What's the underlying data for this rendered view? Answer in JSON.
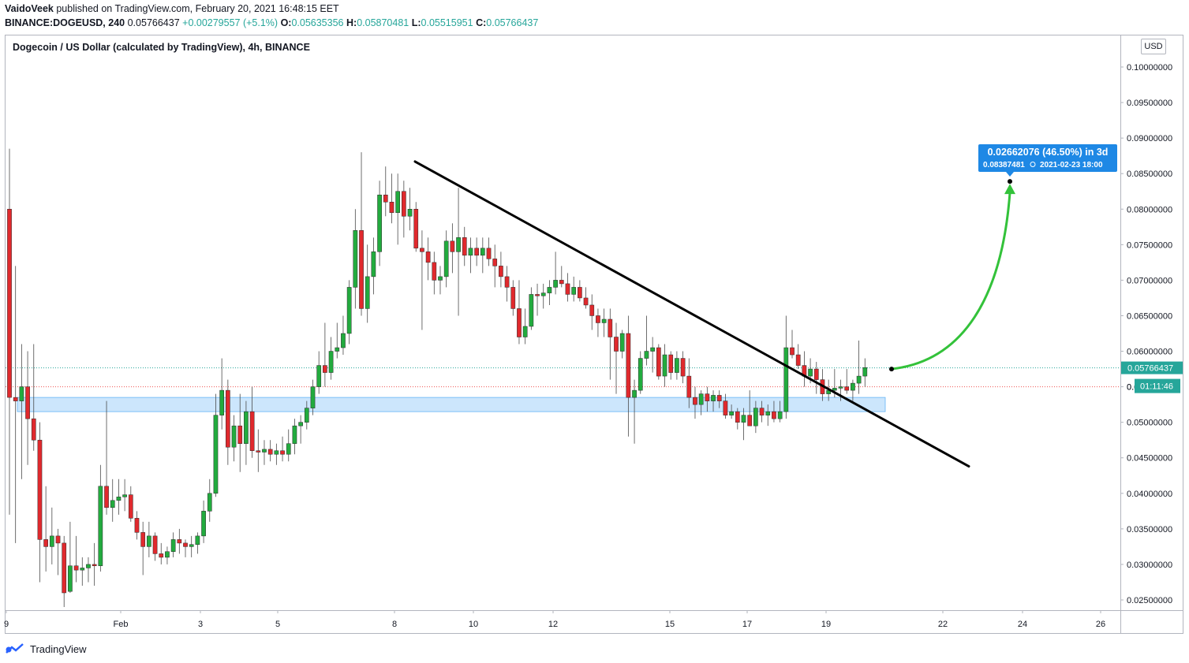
{
  "header": {
    "publisher": "VaidoVeek",
    "published_text": "published on TradingView.com, February 20, 2021 16:48:15 EET",
    "symbol": "BINANCE:DOGEUSD, 240",
    "last": "0.05766437",
    "change": "+0.00279557 (+5.1%)",
    "o_label": "O:",
    "o_value": "0.05635356",
    "h_label": "H:",
    "h_value": "0.05870481",
    "l_label": "L:",
    "l_value": "0.05515951",
    "c_label": "C:",
    "c_value": "0.05766437"
  },
  "pane_title": "Dogecoin / US Dollar (calculated by TradingView), 4h, BINANCE",
  "currency": "USD",
  "price_badges": {
    "last_price": "0.05766437",
    "countdown": "01:11:46",
    "hidden_prefix": "0."
  },
  "projection": {
    "line1": "0.02662076 (46.50%) in 3d",
    "line2_price": "0.08387481",
    "line2_date": "2021-02-23   18:00"
  },
  "footer": {
    "brand": "TradingView"
  },
  "colors": {
    "up": "#26a69a",
    "down": "#ef5350",
    "candle_up": "#22ab3e",
    "candle_down": "#e0292d",
    "zone": "#bbdefb",
    "arrow": "#33c23a",
    "badge": "#2962ff",
    "label_blue": "#1e88e5"
  },
  "chart_data": {
    "type": "candlestick",
    "interval": "4h",
    "ylim": [
      0.0235,
      0.1035
    ],
    "y_ticks": [
      "0.02500000",
      "0.03000000",
      "0.03500000",
      "0.04000000",
      "0.04500000",
      "0.05000000",
      "0.05500000",
      "0.06000000",
      "0.06500000",
      "0.07000000",
      "0.07500000",
      "0.08000000",
      "0.08500000",
      "0.09000000",
      "0.09500000",
      "0.10000000"
    ],
    "x_ticks": [
      "9",
      "Feb",
      "3",
      "5",
      "8",
      "10",
      "12",
      "15",
      "17",
      "19",
      "22",
      "24",
      "26"
    ],
    "last_price": 0.05766437,
    "reference_line": 0.055,
    "support_zone": [
      0.0515,
      0.0535
    ],
    "trendline": {
      "from": [
        "2021-01-08 00:00",
        0.0867
      ],
      "to": [
        "2021-01-22 04:00",
        0.0438
      ]
    },
    "projection_arrow": {
      "from": [
        "2021-01-20 16:00",
        0.0575
      ],
      "to": [
        "2021-01-23 18:00",
        0.0839
      ]
    },
    "candles": [
      {
        "o": 0.08,
        "h": 0.0885,
        "l": 0.037,
        "c": 0.0535
      },
      {
        "o": 0.0535,
        "h": 0.072,
        "l": 0.033,
        "c": 0.053
      },
      {
        "o": 0.053,
        "h": 0.061,
        "l": 0.042,
        "c": 0.055
      },
      {
        "o": 0.055,
        "h": 0.06,
        "l": 0.044,
        "c": 0.0505
      },
      {
        "o": 0.0505,
        "h": 0.061,
        "l": 0.046,
        "c": 0.0475
      },
      {
        "o": 0.0475,
        "h": 0.05,
        "l": 0.0275,
        "c": 0.0335
      },
      {
        "o": 0.0335,
        "h": 0.041,
        "l": 0.029,
        "c": 0.0325
      },
      {
        "o": 0.0325,
        "h": 0.038,
        "l": 0.03,
        "c": 0.034
      },
      {
        "o": 0.034,
        "h": 0.035,
        "l": 0.0285,
        "c": 0.033
      },
      {
        "o": 0.033,
        "h": 0.034,
        "l": 0.024,
        "c": 0.026
      },
      {
        "o": 0.0262,
        "h": 0.036,
        "l": 0.026,
        "c": 0.0298
      },
      {
        "o": 0.0298,
        "h": 0.034,
        "l": 0.0275,
        "c": 0.0292
      },
      {
        "o": 0.0292,
        "h": 0.031,
        "l": 0.027,
        "c": 0.0295
      },
      {
        "o": 0.0295,
        "h": 0.031,
        "l": 0.0275,
        "c": 0.03
      },
      {
        "o": 0.03,
        "h": 0.033,
        "l": 0.027,
        "c": 0.0298
      },
      {
        "o": 0.0298,
        "h": 0.044,
        "l": 0.029,
        "c": 0.041
      },
      {
        "o": 0.041,
        "h": 0.053,
        "l": 0.037,
        "c": 0.038
      },
      {
        "o": 0.038,
        "h": 0.042,
        "l": 0.036,
        "c": 0.039
      },
      {
        "o": 0.039,
        "h": 0.042,
        "l": 0.037,
        "c": 0.0395
      },
      {
        "o": 0.0395,
        "h": 0.042,
        "l": 0.0375,
        "c": 0.0398
      },
      {
        "o": 0.0398,
        "h": 0.041,
        "l": 0.036,
        "c": 0.0365
      },
      {
        "o": 0.0365,
        "h": 0.0375,
        "l": 0.0335,
        "c": 0.0345
      },
      {
        "o": 0.0345,
        "h": 0.036,
        "l": 0.0285,
        "c": 0.0325
      },
      {
        "o": 0.0325,
        "h": 0.036,
        "l": 0.031,
        "c": 0.034
      },
      {
        "o": 0.034,
        "h": 0.0345,
        "l": 0.0305,
        "c": 0.0315
      },
      {
        "o": 0.0315,
        "h": 0.033,
        "l": 0.03,
        "c": 0.031
      },
      {
        "o": 0.031,
        "h": 0.0325,
        "l": 0.03,
        "c": 0.0318
      },
      {
        "o": 0.0318,
        "h": 0.0345,
        "l": 0.031,
        "c": 0.0335
      },
      {
        "o": 0.0335,
        "h": 0.035,
        "l": 0.0315,
        "c": 0.033
      },
      {
        "o": 0.033,
        "h": 0.0335,
        "l": 0.031,
        "c": 0.0325
      },
      {
        "o": 0.0325,
        "h": 0.034,
        "l": 0.031,
        "c": 0.0328
      },
      {
        "o": 0.0328,
        "h": 0.0345,
        "l": 0.0315,
        "c": 0.034
      },
      {
        "o": 0.034,
        "h": 0.039,
        "l": 0.033,
        "c": 0.0375
      },
      {
        "o": 0.0375,
        "h": 0.042,
        "l": 0.036,
        "c": 0.04
      },
      {
        "o": 0.04,
        "h": 0.054,
        "l": 0.0395,
        "c": 0.051
      },
      {
        "o": 0.051,
        "h": 0.059,
        "l": 0.049,
        "c": 0.0545
      },
      {
        "o": 0.0545,
        "h": 0.056,
        "l": 0.044,
        "c": 0.0465
      },
      {
        "o": 0.0465,
        "h": 0.051,
        "l": 0.0445,
        "c": 0.0495
      },
      {
        "o": 0.0495,
        "h": 0.054,
        "l": 0.043,
        "c": 0.047
      },
      {
        "o": 0.047,
        "h": 0.053,
        "l": 0.044,
        "c": 0.0515
      },
      {
        "o": 0.0515,
        "h": 0.055,
        "l": 0.045,
        "c": 0.046
      },
      {
        "o": 0.046,
        "h": 0.049,
        "l": 0.043,
        "c": 0.0458
      },
      {
        "o": 0.0458,
        "h": 0.0475,
        "l": 0.044,
        "c": 0.0462
      },
      {
        "o": 0.0462,
        "h": 0.0475,
        "l": 0.0445,
        "c": 0.0455
      },
      {
        "o": 0.0455,
        "h": 0.047,
        "l": 0.044,
        "c": 0.046
      },
      {
        "o": 0.046,
        "h": 0.048,
        "l": 0.0445,
        "c": 0.0455
      },
      {
        "o": 0.0455,
        "h": 0.049,
        "l": 0.0445,
        "c": 0.047
      },
      {
        "o": 0.047,
        "h": 0.0505,
        "l": 0.0455,
        "c": 0.0495
      },
      {
        "o": 0.0495,
        "h": 0.051,
        "l": 0.047,
        "c": 0.05
      },
      {
        "o": 0.05,
        "h": 0.053,
        "l": 0.049,
        "c": 0.052
      },
      {
        "o": 0.052,
        "h": 0.056,
        "l": 0.051,
        "c": 0.055
      },
      {
        "o": 0.055,
        "h": 0.06,
        "l": 0.054,
        "c": 0.058
      },
      {
        "o": 0.058,
        "h": 0.064,
        "l": 0.055,
        "c": 0.057
      },
      {
        "o": 0.057,
        "h": 0.062,
        "l": 0.056,
        "c": 0.06
      },
      {
        "o": 0.06,
        "h": 0.064,
        "l": 0.059,
        "c": 0.0605
      },
      {
        "o": 0.0605,
        "h": 0.065,
        "l": 0.0595,
        "c": 0.0625
      },
      {
        "o": 0.0625,
        "h": 0.07,
        "l": 0.061,
        "c": 0.069
      },
      {
        "o": 0.069,
        "h": 0.08,
        "l": 0.066,
        "c": 0.077
      },
      {
        "o": 0.077,
        "h": 0.088,
        "l": 0.065,
        "c": 0.066
      },
      {
        "o": 0.066,
        "h": 0.075,
        "l": 0.064,
        "c": 0.0705
      },
      {
        "o": 0.0705,
        "h": 0.076,
        "l": 0.068,
        "c": 0.074
      },
      {
        "o": 0.074,
        "h": 0.084,
        "l": 0.072,
        "c": 0.082
      },
      {
        "o": 0.082,
        "h": 0.086,
        "l": 0.079,
        "c": 0.081
      },
      {
        "o": 0.081,
        "h": 0.085,
        "l": 0.078,
        "c": 0.0795
      },
      {
        "o": 0.0795,
        "h": 0.085,
        "l": 0.075,
        "c": 0.0825
      },
      {
        "o": 0.0825,
        "h": 0.084,
        "l": 0.076,
        "c": 0.079
      },
      {
        "o": 0.079,
        "h": 0.083,
        "l": 0.077,
        "c": 0.08
      },
      {
        "o": 0.08,
        "h": 0.081,
        "l": 0.074,
        "c": 0.0745
      },
      {
        "o": 0.0745,
        "h": 0.077,
        "l": 0.063,
        "c": 0.074
      },
      {
        "o": 0.074,
        "h": 0.076,
        "l": 0.07,
        "c": 0.0725
      },
      {
        "o": 0.0725,
        "h": 0.074,
        "l": 0.068,
        "c": 0.07
      },
      {
        "o": 0.07,
        "h": 0.072,
        "l": 0.068,
        "c": 0.0705
      },
      {
        "o": 0.0705,
        "h": 0.077,
        "l": 0.069,
        "c": 0.0755
      },
      {
        "o": 0.0755,
        "h": 0.078,
        "l": 0.071,
        "c": 0.074
      },
      {
        "o": 0.074,
        "h": 0.083,
        "l": 0.065,
        "c": 0.076
      },
      {
        "o": 0.076,
        "h": 0.0775,
        "l": 0.072,
        "c": 0.0735
      },
      {
        "o": 0.0735,
        "h": 0.076,
        "l": 0.071,
        "c": 0.0745
      },
      {
        "o": 0.0745,
        "h": 0.076,
        "l": 0.072,
        "c": 0.0735
      },
      {
        "o": 0.0735,
        "h": 0.076,
        "l": 0.071,
        "c": 0.0745
      },
      {
        "o": 0.0745,
        "h": 0.076,
        "l": 0.072,
        "c": 0.073
      },
      {
        "o": 0.073,
        "h": 0.075,
        "l": 0.069,
        "c": 0.072
      },
      {
        "o": 0.072,
        "h": 0.074,
        "l": 0.069,
        "c": 0.0705
      },
      {
        "o": 0.0705,
        "h": 0.072,
        "l": 0.067,
        "c": 0.069
      },
      {
        "o": 0.069,
        "h": 0.07,
        "l": 0.065,
        "c": 0.066
      },
      {
        "o": 0.066,
        "h": 0.07,
        "l": 0.061,
        "c": 0.062
      },
      {
        "o": 0.062,
        "h": 0.066,
        "l": 0.061,
        "c": 0.0635
      },
      {
        "o": 0.0635,
        "h": 0.069,
        "l": 0.063,
        "c": 0.068
      },
      {
        "o": 0.068,
        "h": 0.0695,
        "l": 0.065,
        "c": 0.0678
      },
      {
        "o": 0.0678,
        "h": 0.0695,
        "l": 0.066,
        "c": 0.0682
      },
      {
        "o": 0.0682,
        "h": 0.07,
        "l": 0.0665,
        "c": 0.069
      },
      {
        "o": 0.069,
        "h": 0.074,
        "l": 0.068,
        "c": 0.07
      },
      {
        "o": 0.07,
        "h": 0.072,
        "l": 0.069,
        "c": 0.0695
      },
      {
        "o": 0.0695,
        "h": 0.071,
        "l": 0.067,
        "c": 0.068
      },
      {
        "o": 0.068,
        "h": 0.0705,
        "l": 0.067,
        "c": 0.069
      },
      {
        "o": 0.069,
        "h": 0.07,
        "l": 0.067,
        "c": 0.0675
      },
      {
        "o": 0.0675,
        "h": 0.069,
        "l": 0.066,
        "c": 0.0665
      },
      {
        "o": 0.0665,
        "h": 0.068,
        "l": 0.063,
        "c": 0.065
      },
      {
        "o": 0.065,
        "h": 0.066,
        "l": 0.062,
        "c": 0.064
      },
      {
        "o": 0.064,
        "h": 0.066,
        "l": 0.062,
        "c": 0.0645
      },
      {
        "o": 0.0645,
        "h": 0.066,
        "l": 0.056,
        "c": 0.062
      },
      {
        "o": 0.062,
        "h": 0.064,
        "l": 0.054,
        "c": 0.06
      },
      {
        "o": 0.06,
        "h": 0.063,
        "l": 0.059,
        "c": 0.0625
      },
      {
        "o": 0.0625,
        "h": 0.065,
        "l": 0.048,
        "c": 0.0535
      },
      {
        "o": 0.0535,
        "h": 0.056,
        "l": 0.047,
        "c": 0.0545
      },
      {
        "o": 0.0545,
        "h": 0.06,
        "l": 0.054,
        "c": 0.059
      },
      {
        "o": 0.059,
        "h": 0.065,
        "l": 0.058,
        "c": 0.06
      },
      {
        "o": 0.06,
        "h": 0.062,
        "l": 0.057,
        "c": 0.0605
      },
      {
        "o": 0.0605,
        "h": 0.061,
        "l": 0.056,
        "c": 0.0565
      },
      {
        "o": 0.0565,
        "h": 0.061,
        "l": 0.055,
        "c": 0.0595
      },
      {
        "o": 0.0595,
        "h": 0.06,
        "l": 0.056,
        "c": 0.057
      },
      {
        "o": 0.057,
        "h": 0.06,
        "l": 0.056,
        "c": 0.059
      },
      {
        "o": 0.059,
        "h": 0.06,
        "l": 0.0555,
        "c": 0.0565
      },
      {
        "o": 0.0565,
        "h": 0.059,
        "l": 0.052,
        "c": 0.0535
      },
      {
        "o": 0.0535,
        "h": 0.055,
        "l": 0.0505,
        "c": 0.0525
      },
      {
        "o": 0.0525,
        "h": 0.0545,
        "l": 0.051,
        "c": 0.054
      },
      {
        "o": 0.054,
        "h": 0.055,
        "l": 0.0515,
        "c": 0.053
      },
      {
        "o": 0.053,
        "h": 0.0545,
        "l": 0.0515,
        "c": 0.0538
      },
      {
        "o": 0.0538,
        "h": 0.0545,
        "l": 0.052,
        "c": 0.053
      },
      {
        "o": 0.053,
        "h": 0.054,
        "l": 0.0505,
        "c": 0.051
      },
      {
        "o": 0.051,
        "h": 0.0525,
        "l": 0.0505,
        "c": 0.0515
      },
      {
        "o": 0.0515,
        "h": 0.052,
        "l": 0.049,
        "c": 0.05
      },
      {
        "o": 0.05,
        "h": 0.052,
        "l": 0.0475,
        "c": 0.051
      },
      {
        "o": 0.051,
        "h": 0.0545,
        "l": 0.0495,
        "c": 0.0495
      },
      {
        "o": 0.0495,
        "h": 0.053,
        "l": 0.0485,
        "c": 0.052
      },
      {
        "o": 0.052,
        "h": 0.053,
        "l": 0.05,
        "c": 0.051
      },
      {
        "o": 0.051,
        "h": 0.0525,
        "l": 0.0495,
        "c": 0.0515
      },
      {
        "o": 0.0515,
        "h": 0.053,
        "l": 0.05,
        "c": 0.0505
      },
      {
        "o": 0.0505,
        "h": 0.053,
        "l": 0.05,
        "c": 0.0515
      },
      {
        "o": 0.0515,
        "h": 0.065,
        "l": 0.0505,
        "c": 0.0605
      },
      {
        "o": 0.0605,
        "h": 0.063,
        "l": 0.059,
        "c": 0.0595
      },
      {
        "o": 0.0595,
        "h": 0.061,
        "l": 0.0575,
        "c": 0.058
      },
      {
        "o": 0.058,
        "h": 0.06,
        "l": 0.055,
        "c": 0.0565
      },
      {
        "o": 0.0565,
        "h": 0.059,
        "l": 0.0555,
        "c": 0.0575
      },
      {
        "o": 0.0575,
        "h": 0.0585,
        "l": 0.054,
        "c": 0.056
      },
      {
        "o": 0.056,
        "h": 0.0575,
        "l": 0.053,
        "c": 0.054
      },
      {
        "o": 0.054,
        "h": 0.056,
        "l": 0.053,
        "c": 0.0545
      },
      {
        "o": 0.0545,
        "h": 0.0575,
        "l": 0.0535,
        "c": 0.0548
      },
      {
        "o": 0.0548,
        "h": 0.056,
        "l": 0.053,
        "c": 0.055
      },
      {
        "o": 0.055,
        "h": 0.0575,
        "l": 0.054,
        "c": 0.0545
      },
      {
        "o": 0.0545,
        "h": 0.056,
        "l": 0.053,
        "c": 0.0555
      },
      {
        "o": 0.0555,
        "h": 0.0615,
        "l": 0.054,
        "c": 0.0565
      },
      {
        "o": 0.0565,
        "h": 0.059,
        "l": 0.055,
        "c": 0.0577
      }
    ]
  }
}
